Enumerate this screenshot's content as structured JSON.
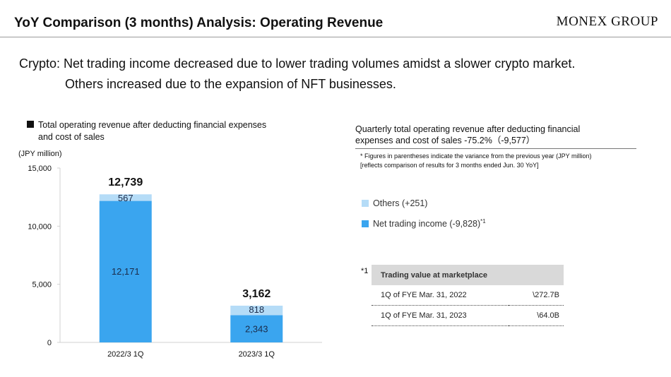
{
  "header": {
    "title": "YoY Comparison (3 months) Analysis: Operating Revenue",
    "logo_text": "MONEX GROUP"
  },
  "headline": {
    "line1": "Crypto: Net trading income decreased due to lower trading volumes amidst a slower crypto market.",
    "line2": "Others increased due to the expansion of NFT businesses."
  },
  "chart_caption": {
    "line1": "Total operating revenue after deducting financial expenses",
    "line2": "and cost of sales"
  },
  "chart_data": {
    "type": "bar",
    "stacked": true,
    "unit_label": "(JPY million)",
    "categories": [
      "2022/3 1Q",
      "2023/3 1Q"
    ],
    "series": [
      {
        "name": "Net trading income",
        "values": [
          12171,
          2343
        ],
        "color": "#3aa5ef"
      },
      {
        "name": "Others",
        "values": [
          567,
          818
        ],
        "color": "#b5dcf7"
      }
    ],
    "totals": [
      12739,
      3162
    ],
    "totals_labels": [
      "12,739",
      "3,162"
    ],
    "value_labels": [
      [
        "12,171",
        "2,343"
      ],
      [
        "567",
        "818"
      ]
    ],
    "ylim": [
      0,
      15000
    ],
    "yticks": [
      0,
      5000,
      10000,
      15000
    ],
    "ytick_labels": [
      "0",
      "5,000",
      "10,000",
      "15,000"
    ],
    "grid": false
  },
  "quarterly": {
    "caption_line1": "Quarterly total operating revenue after deducting financial",
    "caption_line2": "expenses and cost of sales -75.2%（-9,577）",
    "note_line1": "* Figures in parentheses indicate the variance from the previous year (JPY million)",
    "note_line2": "[reflects comparison of results for 3 months ended Jun. 30 YoY]"
  },
  "legend": {
    "others": "Others (+251)",
    "net": "Net trading income (-9,828)",
    "net_sup": "*1",
    "colors": {
      "others": "#b5dcf7",
      "net": "#3aa5ef"
    }
  },
  "trading_table": {
    "footmark": "*1",
    "header": "Trading value at marketplace",
    "rows": [
      {
        "label": "1Q of FYE Mar. 31, 2022",
        "value": "\\272.7B"
      },
      {
        "label": "1Q of FYE Mar. 31, 2023",
        "value": "\\64.0B"
      }
    ]
  }
}
